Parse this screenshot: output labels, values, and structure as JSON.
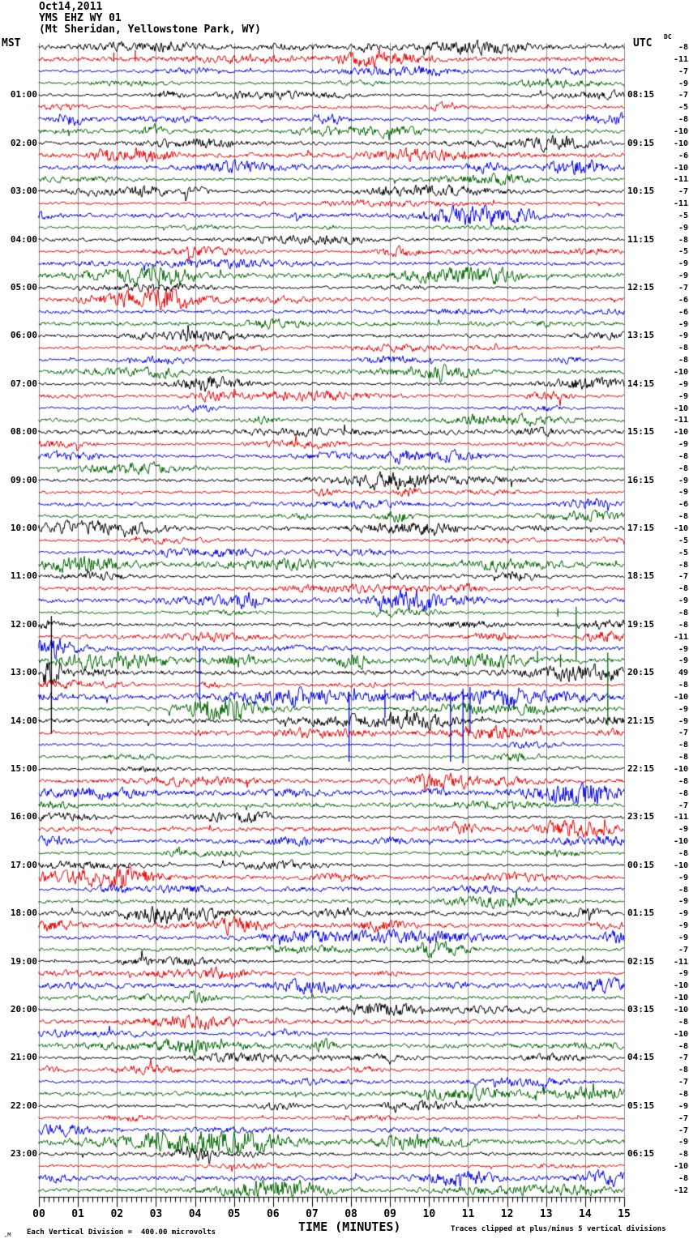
{
  "header": {
    "date": "Oct14,2011",
    "station": "YMS EHZ WY 01",
    "location": "(Mt Sheridan, Yellowstone Park, WY)"
  },
  "axes": {
    "left_label": "MST",
    "right_label": "UTC",
    "dc_label": "DC",
    "x_label": "TIME (MINUTES)",
    "x_ticks": [
      "00",
      "01",
      "02",
      "03",
      "04",
      "05",
      "06",
      "07",
      "08",
      "09",
      "10",
      "11",
      "12",
      "13",
      "14",
      "15"
    ]
  },
  "footer": {
    "left_mark": ",M",
    "scale_text": "Each Vertical Division =  400.00 microvolts",
    "clip_text": "Traces clipped at plus/minus 5 vertical divisions"
  },
  "chart_data": {
    "type": "line",
    "subtype": "helicorder-seismogram",
    "title": "YMS EHZ WY 01 (Mt Sheridan, Yellowstone Park, WY) Oct14,2011",
    "xlabel": "TIME (MINUTES)",
    "x_range_minutes": [
      0,
      15
    ],
    "grid": true,
    "rows": 96,
    "minutes_per_row": 15,
    "row_color_cycle": [
      "#000000",
      "#ee0000",
      "#0000ee",
      "#006600"
    ],
    "grid_color": "#8c8c8c",
    "clip_note": "traces clipped at plus/minus 5 vertical divisions",
    "vertical_division_microvolts": 400.0,
    "left_time_labels": [
      "01:00",
      "02:00",
      "03:00",
      "04:00",
      "05:00",
      "06:00",
      "07:00",
      "08:00",
      "09:00",
      "10:00",
      "11:00",
      "12:00",
      "13:00",
      "14:00",
      "15:00",
      "16:00",
      "17:00",
      "18:00",
      "19:00",
      "20:00",
      "21:00",
      "22:00",
      "23:00"
    ],
    "right_time_labels": [
      "08:15",
      "09:15",
      "10:15",
      "11:15",
      "12:15",
      "13:15",
      "14:15",
      "15:15",
      "16:15",
      "17:15",
      "18:15",
      "19:15",
      "20:15",
      "21:15",
      "22:15",
      "23:15",
      "00:15",
      "01:15",
      "02:15",
      "03:15",
      "04:15",
      "05:15",
      "06:15"
    ],
    "dc_offsets": [
      -8,
      -11,
      -7,
      -9,
      -7,
      -5,
      -8,
      -10,
      -10,
      -6,
      -10,
      -11,
      -7,
      -11,
      -5,
      -9,
      -8,
      -5,
      -9,
      -9,
      -7,
      -6,
      -6,
      -9,
      -9,
      -8,
      -8,
      -10,
      -9,
      -9,
      -10,
      -11,
      -10,
      -9,
      -8,
      -8,
      -9,
      -9,
      -6,
      -8,
      -10,
      -5,
      -5,
      -8,
      -7,
      -8,
      -9,
      -8,
      -8,
      -11,
      -9,
      -9,
      49,
      -8,
      -10,
      -9,
      -9,
      -7,
      -8,
      -8,
      -10,
      -8,
      -8,
      -7,
      -11,
      -9,
      -10,
      -8,
      -10,
      -9,
      -8,
      -9,
      -9,
      -9,
      -9,
      -7,
      -11,
      -9,
      -10,
      -10,
      -10,
      -8,
      -10,
      -8,
      -7,
      -8,
      -7,
      -8,
      -9,
      -7,
      -7,
      -9,
      -8,
      -10,
      -8,
      -12
    ],
    "events": [
      {
        "row": 1,
        "min": 1.92,
        "up": 8,
        "down": 3
      },
      {
        "row": 1,
        "min": 2.47,
        "up": 11,
        "down": 3
      },
      {
        "row": 47,
        "min": 13.3,
        "up": 5,
        "down": 5
      },
      {
        "row": 47,
        "min": 13.77,
        "up": 7,
        "down": 59
      },
      {
        "row": 51,
        "min": 12.78,
        "up": 12,
        "down": 3
      },
      {
        "row": 51,
        "min": 13.37,
        "up": 8,
        "down": 8
      },
      {
        "row": 51,
        "min": 14.58,
        "up": 10,
        "down": 80
      },
      {
        "row": 52,
        "min": 0.32,
        "up": 70,
        "down": 75
      },
      {
        "row": 54,
        "min": 4.12,
        "up": 60,
        "down": 5
      },
      {
        "row": 54,
        "min": 7.95,
        "up": 6,
        "down": 80
      },
      {
        "row": 54,
        "min": 8.87,
        "up": 9,
        "down": 26
      },
      {
        "row": 54,
        "min": 9.6,
        "up": 9,
        "down": 5
      },
      {
        "row": 54,
        "min": 10.55,
        "up": 6,
        "down": 80
      },
      {
        "row": 54,
        "min": 10.87,
        "up": 10,
        "down": 82
      },
      {
        "row": 54,
        "min": 11.05,
        "up": 12,
        "down": 45
      }
    ],
    "noisy_zones": [
      {
        "row": 52,
        "from": 0.12,
        "to": 0.55,
        "gain": 9.0,
        "clip": 12
      },
      {
        "row": 52,
        "from": 0.55,
        "to": 2.2,
        "gain": 1.8
      },
      {
        "row": 54,
        "from": 6.3,
        "to": 12.3,
        "gain": 2.4
      },
      {
        "row": 55,
        "from": 3.3,
        "to": 5.2,
        "gain": 2.0
      }
    ]
  }
}
